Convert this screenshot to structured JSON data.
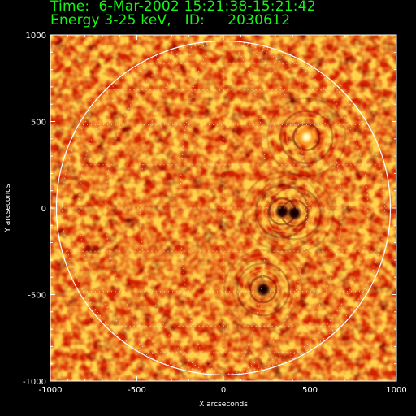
{
  "header": {
    "time_line": "Time:  6-Mar-2002 15:21:38-15:21:42",
    "energy_line": "Energy 3-25 keV,   ID:     2030612"
  },
  "colors": {
    "header_text": "#16f516",
    "background": "#000000",
    "image_low": "#0a0000",
    "image_mid": "#d42200",
    "image_high": "#fff0a0",
    "limb": "#ffffff"
  },
  "chart_data": {
    "type": "heatmap",
    "title": "",
    "xlabel": "X arcseconds",
    "ylabel": "Y arcseconds",
    "xlim": [
      -1000,
      1000
    ],
    "ylim": [
      -1000,
      1000
    ],
    "x_ticks": [
      -1000,
      -500,
      0,
      500,
      1000
    ],
    "y_ticks": [
      -1000,
      -500,
      0,
      500,
      1000
    ],
    "x_tick_labels": [
      "-1000",
      "-500",
      "0",
      "500",
      "1000"
    ],
    "y_tick_labels": [
      "-1000",
      "-500",
      "0",
      "500",
      "1000"
    ],
    "solar_radius_arcsec": 965,
    "heliographic_grid": "dotted",
    "sources": [
      {
        "name": "bright source",
        "x": 480,
        "y": 410
      },
      {
        "name": "dark source",
        "x": 230,
        "y": -470
      },
      {
        "name": "dark source",
        "x": 410,
        "y": -30
      },
      {
        "name": "dark source",
        "x": 340,
        "y": -20
      }
    ]
  }
}
